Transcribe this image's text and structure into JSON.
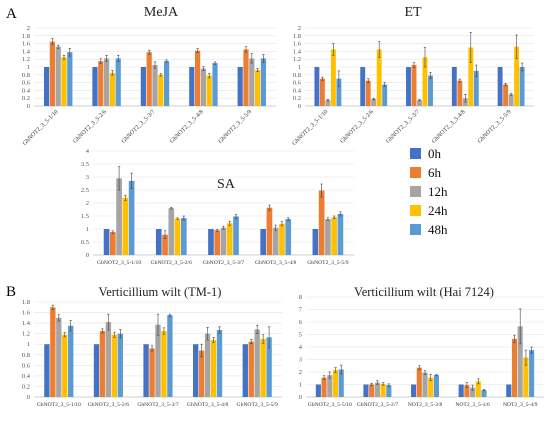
{
  "figure": {
    "panel_labels": [
      "A",
      "B"
    ]
  },
  "legend": {
    "items": [
      {
        "label": "0h",
        "color": "#4472C4"
      },
      {
        "label": "6h",
        "color": "#ED7D31"
      },
      {
        "label": "12h",
        "color": "#A5A5A5"
      },
      {
        "label": "24h",
        "color": "#FFC000"
      },
      {
        "label": "48h",
        "color": "#5B9BD5"
      }
    ]
  },
  "chart_data": [
    {
      "type": "bar",
      "title": "MeJA",
      "categories": [
        "GhNOT2_3_5-1/10",
        "GhNOT2_3_5-2/6",
        "GhNOT2_3_5-3/7",
        "GhNOT2_3_5-4/8",
        "GhNOT2_3_5-5/9"
      ],
      "ylim": [
        0,
        2
      ],
      "yticks": [
        "0",
        "0.2",
        "0.4",
        "0.6",
        "0.8",
        "1",
        "1.2",
        "1.4",
        "1.6",
        "1.8",
        "2"
      ],
      "series": [
        {
          "name": "0h",
          "color": "#4472C4",
          "values": [
            1.0,
            1.0,
            1.0,
            1.0,
            1.0
          ],
          "errors": [
            0,
            0,
            0,
            0,
            0
          ]
        },
        {
          "name": "6h",
          "color": "#ED7D31",
          "values": [
            1.65,
            1.15,
            1.38,
            1.42,
            1.45
          ],
          "errors": [
            0.08,
            0.06,
            0.05,
            0.05,
            0.07
          ]
        },
        {
          "name": "12h",
          "color": "#A5A5A5",
          "values": [
            1.52,
            1.22,
            1.05,
            0.96,
            1.22
          ],
          "errors": [
            0.04,
            0.08,
            0.08,
            0.05,
            0.12
          ]
        },
        {
          "name": "24h",
          "color": "#FFC000",
          "values": [
            1.25,
            0.85,
            0.8,
            0.78,
            0.92
          ],
          "errors": [
            0.05,
            0.06,
            0.03,
            0.06,
            0.04
          ]
        },
        {
          "name": "48h",
          "color": "#5B9BD5",
          "values": [
            1.38,
            1.22,
            1.15,
            1.1,
            1.22
          ],
          "errors": [
            0.1,
            0.08,
            0.03,
            0.03,
            0.1
          ]
        }
      ]
    },
    {
      "type": "bar",
      "title": "ET",
      "categories": [
        "GhNOT2_3_5-1/10",
        "GhNOT2_3_5-2/6",
        "GhNOT2_3_5-3/7",
        "GhNOT2_3_5-4/8",
        "GhNOT2_3_5-5/9"
      ],
      "ylim": [
        0,
        2
      ],
      "yticks": [
        "0",
        "0.2",
        "0.4",
        "0.6",
        "0.8",
        "1",
        "1.2",
        "1.4",
        "1.6",
        "1.8",
        "2"
      ],
      "series": [
        {
          "name": "0h",
          "color": "#4472C4",
          "values": [
            1.0,
            1.0,
            1.0,
            1.0,
            1.0
          ],
          "errors": [
            0,
            0,
            0,
            0,
            0
          ]
        },
        {
          "name": "6h",
          "color": "#ED7D31",
          "values": [
            0.7,
            0.65,
            1.05,
            0.65,
            0.55
          ],
          "errors": [
            0.04,
            0.05,
            0.06,
            0.04,
            0.03
          ]
        },
        {
          "name": "12h",
          "color": "#A5A5A5",
          "values": [
            0.15,
            0.18,
            0.15,
            0.2,
            0.3
          ],
          "errors": [
            0.02,
            0.02,
            0.02,
            0.1,
            0.03
          ]
        },
        {
          "name": "24h",
          "color": "#FFC000",
          "values": [
            1.45,
            1.45,
            1.25,
            1.5,
            1.52
          ],
          "errors": [
            0.15,
            0.2,
            0.25,
            0.38,
            0.3
          ]
        },
        {
          "name": "48h",
          "color": "#5B9BD5",
          "values": [
            0.7,
            0.55,
            0.78,
            0.9,
            1.0
          ],
          "errors": [
            0.2,
            0.05,
            0.08,
            0.15,
            0.1
          ]
        }
      ]
    },
    {
      "type": "bar",
      "title": "SA",
      "categories": [
        "GbNOT2_3_5-1/10",
        "GbNOT2_3_5-2/6",
        "GbNOT2_3_5-3/7",
        "GbNOT2_3_5-4/8",
        "GbNOT2_3_5-5/9"
      ],
      "ylim": [
        0,
        4
      ],
      "yticks": [
        "0",
        "0.5",
        "1",
        "1.5",
        "2",
        "2.5",
        "3",
        "3.5",
        "4"
      ],
      "series": [
        {
          "name": "0h",
          "color": "#4472C4",
          "values": [
            1.0,
            1.0,
            1.0,
            1.0,
            1.0
          ],
          "errors": [
            0,
            0,
            0,
            0,
            0
          ]
        },
        {
          "name": "6h",
          "color": "#ED7D31",
          "values": [
            0.88,
            0.78,
            0.95,
            1.82,
            2.48
          ],
          "errors": [
            0.05,
            0.15,
            0.04,
            0.1,
            0.25
          ]
        },
        {
          "name": "12h",
          "color": "#A5A5A5",
          "values": [
            2.95,
            1.8,
            1.05,
            1.05,
            1.38
          ],
          "errors": [
            0.45,
            0.03,
            0.06,
            0.1,
            0.05
          ]
        },
        {
          "name": "24h",
          "color": "#FFC000",
          "values": [
            2.2,
            1.4,
            1.22,
            1.2,
            1.45
          ],
          "errors": [
            0.1,
            0.03,
            0.08,
            0.08,
            0.05
          ]
        },
        {
          "name": "48h",
          "color": "#5B9BD5",
          "values": [
            2.85,
            1.42,
            1.48,
            1.38,
            1.58
          ],
          "errors": [
            0.3,
            0.08,
            0.08,
            0.05,
            0.08
          ]
        }
      ]
    },
    {
      "type": "bar",
      "title": "Verticillium wilt (TM-1)",
      "categories": [
        "GhNOT2_3_5-1/10",
        "GhNOT2_3_5-2/6",
        "GhNOT2_3_5-3/7",
        "GhNOT2_3_5-4/8",
        "GhNOT2_3_5-5/9"
      ],
      "ylim": [
        0,
        1.8
      ],
      "yticks": [
        "0",
        "0.2",
        "0.4",
        "0.6",
        "0.8",
        "1",
        "1.2",
        "1.4",
        "1.6",
        "1.8"
      ],
      "series": [
        {
          "name": "0h",
          "color": "#4472C4",
          "values": [
            1.0,
            1.0,
            1.0,
            1.0,
            1.0
          ],
          "errors": [
            0,
            0,
            0,
            0,
            0
          ]
        },
        {
          "name": "6h",
          "color": "#ED7D31",
          "values": [
            1.7,
            1.25,
            0.92,
            0.88,
            1.05
          ],
          "errors": [
            0.04,
            0.04,
            0.05,
            0.12,
            0.04
          ]
        },
        {
          "name": "12h",
          "color": "#A5A5A5",
          "values": [
            1.5,
            1.42,
            1.37,
            1.2,
            1.28
          ],
          "errors": [
            0.06,
            0.15,
            0.2,
            0.12,
            0.08
          ]
        },
        {
          "name": "24h",
          "color": "#FFC000",
          "values": [
            1.18,
            1.18,
            1.25,
            1.08,
            1.1
          ],
          "errors": [
            0.04,
            0.05,
            0.06,
            0.05,
            0.08
          ]
        },
        {
          "name": "48h",
          "color": "#5B9BD5",
          "values": [
            1.35,
            1.2,
            1.55,
            1.27,
            1.13
          ],
          "errors": [
            0.1,
            0.08,
            0.02,
            0.06,
            0.2
          ]
        }
      ]
    },
    {
      "type": "bar",
      "title": "Verticillium wilt (Hai 7124)",
      "categories": [
        "GbNOT2_3_5-5/10",
        "GbNOT2_3_5-2/7",
        "NOT2_3_5-3/8",
        "NOT2_3_5-1/6",
        "NOT2_3_5-4/9"
      ],
      "ylim": [
        0,
        8
      ],
      "yticks": [
        "0",
        "1",
        "2",
        "3",
        "4",
        "5",
        "6",
        "7",
        "8"
      ],
      "series": [
        {
          "name": "0h",
          "color": "#4472C4",
          "values": [
            1.0,
            1.0,
            1.0,
            1.0,
            1.0
          ],
          "errors": [
            0,
            0,
            0,
            0,
            0
          ]
        },
        {
          "name": "6h",
          "color": "#ED7D31",
          "values": [
            1.55,
            1.0,
            2.35,
            0.95,
            4.65
          ],
          "errors": [
            0.15,
            0.1,
            0.15,
            0.2,
            0.3
          ]
        },
        {
          "name": "12h",
          "color": "#A5A5A5",
          "values": [
            1.75,
            1.15,
            1.95,
            0.75,
            5.65
          ],
          "errors": [
            0.25,
            0.15,
            0.15,
            0.2,
            1.4
          ]
        },
        {
          "name": "24h",
          "color": "#FFC000",
          "values": [
            2.15,
            1.05,
            1.55,
            1.25,
            3.15
          ],
          "errors": [
            0.2,
            0.1,
            0.25,
            0.2,
            0.6
          ]
        },
        {
          "name": "48h",
          "color": "#5B9BD5",
          "values": [
            2.2,
            0.95,
            1.75,
            0.55,
            3.75
          ],
          "errors": [
            0.35,
            0.1,
            0.05,
            0.05,
            0.25
          ]
        }
      ]
    }
  ]
}
